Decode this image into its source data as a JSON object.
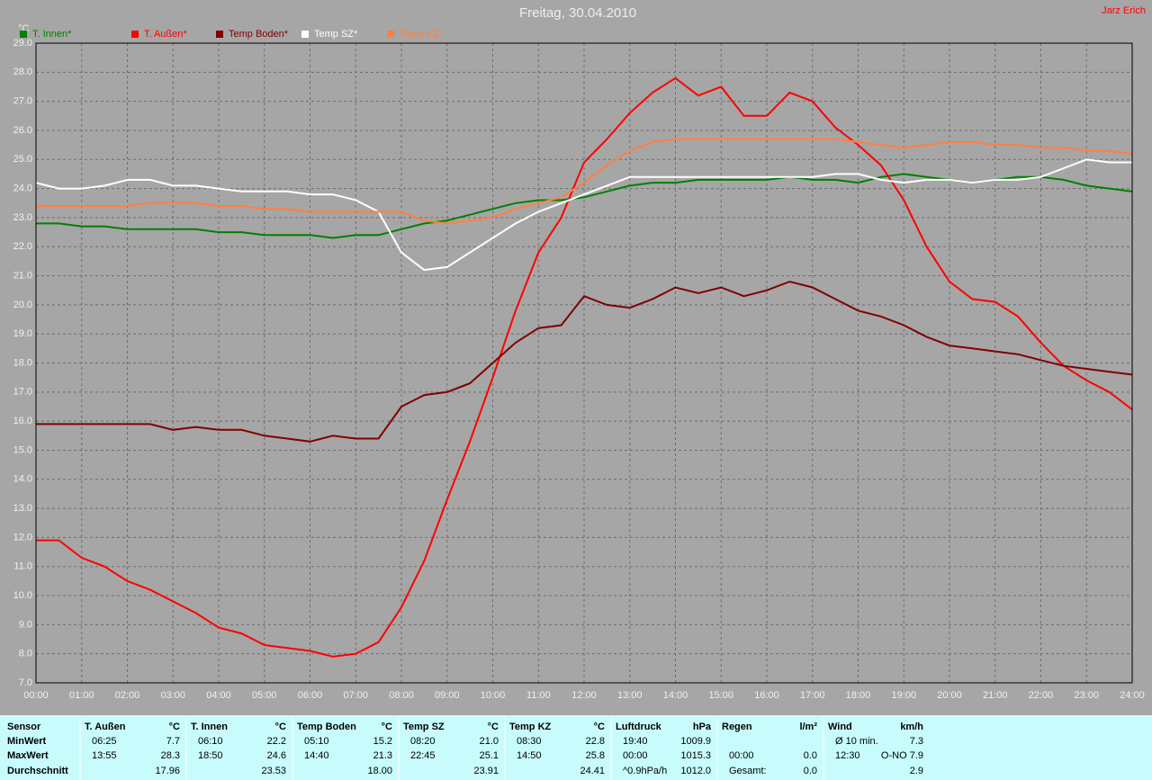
{
  "chart_data": {
    "type": "line",
    "title": "Freitag, 30.04.2010",
    "author": "Jarz Erich",
    "y_label": "°C",
    "x": [
      0,
      0.5,
      1,
      1.5,
      2,
      2.5,
      3,
      3.5,
      4,
      4.5,
      5,
      5.5,
      6,
      6.5,
      7,
      7.5,
      8,
      8.5,
      9,
      9.5,
      10,
      10.5,
      11,
      11.5,
      12,
      12.5,
      13,
      13.5,
      14,
      14.5,
      15,
      15.5,
      16,
      16.5,
      17,
      17.5,
      18,
      18.5,
      19,
      19.5,
      20,
      20.5,
      21,
      21.5,
      22,
      22.5,
      23,
      23.5,
      24
    ],
    "series": [
      {
        "name": "T. Innen*",
        "color": "#008000",
        "values": [
          22.8,
          22.8,
          22.7,
          22.7,
          22.6,
          22.6,
          22.6,
          22.6,
          22.5,
          22.5,
          22.4,
          22.4,
          22.4,
          22.3,
          22.4,
          22.4,
          22.6,
          22.8,
          22.9,
          23.1,
          23.3,
          23.5,
          23.6,
          23.6,
          23.7,
          23.9,
          24.1,
          24.2,
          24.2,
          24.3,
          24.3,
          24.3,
          24.3,
          24.4,
          24.3,
          24.3,
          24.2,
          24.4,
          24.5,
          24.4,
          24.3,
          24.2,
          24.3,
          24.4,
          24.4,
          24.3,
          24.1,
          24.0,
          23.9
        ]
      },
      {
        "name": "T. Außen*",
        "color": "#ff0000",
        "values": [
          11.9,
          11.9,
          11.3,
          11.0,
          10.5,
          10.2,
          9.8,
          9.4,
          8.9,
          8.7,
          8.3,
          8.2,
          8.1,
          7.9,
          8.0,
          8.4,
          9.6,
          11.2,
          13.3,
          15.3,
          17.5,
          19.8,
          21.8,
          23.0,
          24.9,
          25.7,
          26.6,
          27.3,
          27.8,
          27.2,
          27.5,
          26.5,
          26.5,
          27.3,
          27.0,
          26.1,
          25.5,
          24.8,
          23.6,
          22.0,
          20.8,
          20.2,
          20.1,
          19.6,
          18.7,
          17.9,
          17.4,
          17.0,
          16.4
        ]
      },
      {
        "name": "Temp Boden*",
        "color": "#800000",
        "values": [
          15.9,
          15.9,
          15.9,
          15.9,
          15.9,
          15.9,
          15.7,
          15.8,
          15.7,
          15.7,
          15.5,
          15.4,
          15.3,
          15.5,
          15.4,
          15.4,
          16.5,
          16.9,
          17.0,
          17.3,
          18.0,
          18.7,
          19.2,
          19.3,
          20.3,
          20.0,
          19.9,
          20.2,
          20.6,
          20.4,
          20.6,
          20.3,
          20.5,
          20.8,
          20.6,
          20.2,
          19.8,
          19.6,
          19.3,
          18.9,
          18.6,
          18.5,
          18.4,
          18.3,
          18.1,
          17.9,
          17.8,
          17.7,
          17.6
        ]
      },
      {
        "name": "Temp SZ*",
        "color": "#ffffff",
        "values": [
          24.2,
          24.0,
          24.0,
          24.1,
          24.3,
          24.3,
          24.1,
          24.1,
          24.0,
          23.9,
          23.9,
          23.9,
          23.8,
          23.8,
          23.6,
          23.2,
          21.8,
          21.2,
          21.3,
          21.8,
          22.3,
          22.8,
          23.2,
          23.5,
          23.8,
          24.1,
          24.4,
          24.4,
          24.4,
          24.4,
          24.4,
          24.4,
          24.4,
          24.4,
          24.4,
          24.5,
          24.5,
          24.3,
          24.2,
          24.3,
          24.3,
          24.2,
          24.3,
          24.3,
          24.4,
          24.7,
          25.0,
          24.9,
          24.9
        ]
      },
      {
        "name": "Temp KZ*",
        "color": "#ff8040",
        "values": [
          23.4,
          23.4,
          23.4,
          23.4,
          23.4,
          23.5,
          23.5,
          23.5,
          23.4,
          23.4,
          23.3,
          23.3,
          23.2,
          23.2,
          23.2,
          23.2,
          23.2,
          22.9,
          22.8,
          22.9,
          23.0,
          23.3,
          23.5,
          23.7,
          24.2,
          24.8,
          25.3,
          25.6,
          25.7,
          25.7,
          25.7,
          25.7,
          25.7,
          25.7,
          25.7,
          25.7,
          25.6,
          25.5,
          25.4,
          25.5,
          25.6,
          25.6,
          25.5,
          25.5,
          25.4,
          25.4,
          25.3,
          25.3,
          25.2
        ]
      }
    ],
    "xlim": [
      0,
      24
    ],
    "xticks": [
      {
        "value": 0,
        "label": "00:00"
      },
      {
        "value": 1,
        "label": "01:00"
      },
      {
        "value": 2,
        "label": "02:00"
      },
      {
        "value": 3,
        "label": "03:00"
      },
      {
        "value": 4,
        "label": "04:00"
      },
      {
        "value": 5,
        "label": "05:00"
      },
      {
        "value": 6,
        "label": "06:00"
      },
      {
        "value": 7,
        "label": "07:00"
      },
      {
        "value": 8,
        "label": "08:00"
      },
      {
        "value": 9,
        "label": "09:00"
      },
      {
        "value": 10,
        "label": "10:00"
      },
      {
        "value": 11,
        "label": "11:00"
      },
      {
        "value": 12,
        "label": "12:00"
      },
      {
        "value": 13,
        "label": "13:00"
      },
      {
        "value": 14,
        "label": "14:00"
      },
      {
        "value": 15,
        "label": "15:00"
      },
      {
        "value": 16,
        "label": "16:00"
      },
      {
        "value": 17,
        "label": "17:00"
      },
      {
        "value": 18,
        "label": "18:00"
      },
      {
        "value": 19,
        "label": "19:00"
      },
      {
        "value": 20,
        "label": "20:00"
      },
      {
        "value": 21,
        "label": "21:00"
      },
      {
        "value": 22,
        "label": "22:00"
      },
      {
        "value": 23,
        "label": "23:00"
      },
      {
        "value": 24,
        "label": "24:00"
      }
    ],
    "ylim": [
      7,
      29
    ],
    "yticks": [
      {
        "value": 7,
        "label": "7.0"
      },
      {
        "value": 8,
        "label": "8.0"
      },
      {
        "value": 9,
        "label": "9.0"
      },
      {
        "value": 10,
        "label": "10.0"
      },
      {
        "value": 11,
        "label": "11.0"
      },
      {
        "value": 12,
        "label": "12.0"
      },
      {
        "value": 13,
        "label": "13.0"
      },
      {
        "value": 14,
        "label": "14.0"
      },
      {
        "value": 15,
        "label": "15.0"
      },
      {
        "value": 16,
        "label": "16.0"
      },
      {
        "value": 17,
        "label": "17.0"
      },
      {
        "value": 18,
        "label": "18.0"
      },
      {
        "value": 19,
        "label": "19.0"
      },
      {
        "value": 20,
        "label": "20.0"
      },
      {
        "value": 21,
        "label": "21.0"
      },
      {
        "value": 22,
        "label": "22.0"
      },
      {
        "value": 23,
        "label": "23.0"
      },
      {
        "value": 24,
        "label": "24.0"
      },
      {
        "value": 25,
        "label": "25.0"
      },
      {
        "value": 26,
        "label": "26.0"
      },
      {
        "value": 27,
        "label": "27.0"
      },
      {
        "value": 28,
        "label": "28.0"
      },
      {
        "value": 29,
        "label": "29.0"
      }
    ],
    "grid": true
  },
  "table": {
    "header_label": "Sensor",
    "row_labels": [
      "MinWert",
      "MaxWert",
      "Durchschnitt"
    ],
    "groups": [
      {
        "name": "T. Außen",
        "unit": "°C",
        "rows": [
          [
            "06:25",
            "7.7"
          ],
          [
            "13:55",
            "28.3"
          ],
          [
            null,
            "17.96"
          ]
        ]
      },
      {
        "name": "T. Innen",
        "unit": "°C",
        "rows": [
          [
            "06:10",
            "22.2"
          ],
          [
            "18:50",
            "24.6"
          ],
          [
            null,
            "23.53"
          ]
        ]
      },
      {
        "name": "Temp Boden",
        "unit": "°C",
        "rows": [
          [
            "05:10",
            "15.2"
          ],
          [
            "14:40",
            "21.3"
          ],
          [
            null,
            "18.00"
          ]
        ]
      },
      {
        "name": "Temp SZ",
        "unit": "°C",
        "rows": [
          [
            "08:20",
            "21.0"
          ],
          [
            "22:45",
            "25.1"
          ],
          [
            null,
            "23.91"
          ]
        ]
      },
      {
        "name": "Temp KZ",
        "unit": "°C",
        "rows": [
          [
            "08:30",
            "22.8"
          ],
          [
            "14:50",
            "25.8"
          ],
          [
            null,
            "24.41"
          ]
        ]
      },
      {
        "name": "Luftdruck",
        "unit": "hPa",
        "rows": [
          [
            "19:40",
            "1009.9"
          ],
          [
            "00:00",
            "1015.3"
          ],
          [
            "^0.9hPa/h",
            "1012.0"
          ]
        ]
      },
      {
        "name": "Regen",
        "unit": "l/m²",
        "rows": [
          [
            null,
            null
          ],
          [
            "00:00",
            "0.0"
          ],
          [
            "Gesamt:",
            "0.0"
          ]
        ]
      },
      {
        "name": "Wind",
        "unit": "km/h",
        "rows": [
          [
            "Ø 10 min.",
            "7.3"
          ],
          [
            "12:30",
            "O-NO 7.9"
          ],
          [
            null,
            "2.9"
          ]
        ]
      }
    ]
  }
}
